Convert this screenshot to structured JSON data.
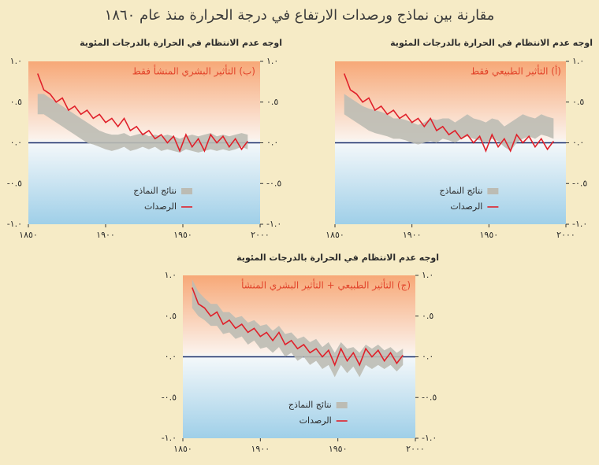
{
  "title": "مقارنة بين نماذج ورصدات الارتفاع في درجة الحرارة منذ عام ١٨٦٠",
  "chart_data": [
    {
      "type": "line",
      "title": "اوجه عدم الانتظام في الحرارة بالدرجات المئوية",
      "annotation": "(أ) التأثير الطبيعي فقط",
      "x": [
        1856,
        1860,
        1864,
        1868,
        1872,
        1876,
        1880,
        1884,
        1888,
        1892,
        1896,
        1900,
        1904,
        1908,
        1912,
        1916,
        1920,
        1924,
        1928,
        1932,
        1936,
        1940,
        1944,
        1948,
        1952,
        1956,
        1960,
        1964,
        1968,
        1972,
        1976,
        1980,
        1984,
        1988,
        1992
      ],
      "series": [
        {
          "name": "نتائج النماذج",
          "color": "#bcbcb4",
          "lower": [
            0.35,
            0.3,
            0.25,
            0.2,
            0.15,
            0.12,
            0.1,
            0.08,
            0.05,
            0.05,
            0.03,
            0.0,
            -0.02,
            0.0,
            0.02,
            0.0,
            0.05,
            0.03,
            0.0,
            0.05,
            0.08,
            0.05,
            0.03,
            0.0,
            0.05,
            0.02,
            -0.05,
            -0.1,
            0.0,
            0.05,
            0.08,
            0.05,
            0.1,
            0.08,
            0.05
          ],
          "upper": [
            0.6,
            0.55,
            0.5,
            0.45,
            0.42,
            0.4,
            0.38,
            0.35,
            0.3,
            0.3,
            0.28,
            0.25,
            0.22,
            0.25,
            0.3,
            0.28,
            0.3,
            0.3,
            0.25,
            0.3,
            0.35,
            0.3,
            0.28,
            0.25,
            0.3,
            0.28,
            0.2,
            0.25,
            0.3,
            0.35,
            0.32,
            0.3,
            0.35,
            0.32,
            0.3
          ]
        },
        {
          "name": "الرصدات",
          "color": "#e0202a",
          "values": [
            0.85,
            0.65,
            0.6,
            0.5,
            0.55,
            0.4,
            0.45,
            0.35,
            0.4,
            0.3,
            0.35,
            0.25,
            0.3,
            0.2,
            0.3,
            0.15,
            0.2,
            0.1,
            0.15,
            0.05,
            0.1,
            0.0,
            0.08,
            -0.1,
            0.1,
            -0.05,
            0.05,
            -0.1,
            0.1,
            0.0,
            0.08,
            -0.05,
            0.05,
            -0.08,
            0.02
          ]
        }
      ],
      "xlim": [
        1850,
        2000
      ],
      "ylim": [
        -1,
        1
      ],
      "xticks": [
        {
          "value": 1850,
          "label": "١٨٥٠"
        },
        {
          "value": 1900,
          "label": "١٩٠٠"
        },
        {
          "value": 1950,
          "label": "١٩٥٠"
        },
        {
          "value": 2000,
          "label": "٢٠٠٠"
        }
      ],
      "yticks": [
        {
          "value": 1,
          "label": "١.٠"
        },
        {
          "value": 0.5,
          "label": "٠.٥"
        },
        {
          "value": 0,
          "label": "٠.٠"
        },
        {
          "value": -0.5,
          "label": "-٠.٥"
        },
        {
          "value": -1,
          "label": "-١.٠"
        }
      ]
    },
    {
      "type": "line",
      "title": "اوجه عدم الانتظام في الحرارة بالدرجات المئوية",
      "annotation": "(ب) التأثير البشري المنشأ فقط",
      "x": [
        1856,
        1860,
        1864,
        1868,
        1872,
        1876,
        1880,
        1884,
        1888,
        1892,
        1896,
        1900,
        1904,
        1908,
        1912,
        1916,
        1920,
        1924,
        1928,
        1932,
        1936,
        1940,
        1944,
        1948,
        1952,
        1956,
        1960,
        1964,
        1968,
        1972,
        1976,
        1980,
        1984,
        1988,
        1992
      ],
      "series": [
        {
          "name": "نتائج النماذج",
          "color": "#bcbcb4",
          "lower": [
            0.35,
            0.35,
            0.3,
            0.25,
            0.2,
            0.15,
            0.1,
            0.05,
            0.0,
            -0.02,
            -0.05,
            -0.08,
            -0.1,
            -0.08,
            -0.05,
            -0.1,
            -0.08,
            -0.05,
            -0.08,
            -0.05,
            -0.1,
            -0.08,
            -0.1,
            -0.12,
            -0.08,
            -0.1,
            -0.12,
            -0.1,
            -0.08,
            -0.1,
            -0.08,
            -0.1,
            -0.08,
            -0.05,
            -0.08
          ],
          "upper": [
            0.6,
            0.6,
            0.55,
            0.5,
            0.45,
            0.4,
            0.35,
            0.3,
            0.25,
            0.2,
            0.15,
            0.12,
            0.1,
            0.1,
            0.12,
            0.08,
            0.1,
            0.12,
            0.08,
            0.1,
            0.08,
            0.1,
            0.08,
            0.05,
            0.08,
            0.1,
            0.08,
            0.1,
            0.12,
            0.08,
            0.1,
            0.08,
            0.1,
            0.12,
            0.1
          ]
        },
        {
          "name": "الرصدات",
          "color": "#e0202a",
          "values": [
            0.85,
            0.65,
            0.6,
            0.5,
            0.55,
            0.4,
            0.45,
            0.35,
            0.4,
            0.3,
            0.35,
            0.25,
            0.3,
            0.2,
            0.3,
            0.15,
            0.2,
            0.1,
            0.15,
            0.05,
            0.1,
            0.0,
            0.08,
            -0.1,
            0.1,
            -0.05,
            0.05,
            -0.1,
            0.1,
            0.0,
            0.08,
            -0.05,
            0.05,
            -0.08,
            0.02
          ]
        }
      ],
      "xlim": [
        1850,
        2000
      ],
      "ylim": [
        -1,
        1
      ],
      "xticks": [
        {
          "value": 1850,
          "label": "١٨٥٠"
        },
        {
          "value": 1900,
          "label": "١٩٠٠"
        },
        {
          "value": 1950,
          "label": "١٩٥٠"
        },
        {
          "value": 2000,
          "label": "٢٠٠٠"
        }
      ],
      "yticks": [
        {
          "value": 1,
          "label": "١.٠"
        },
        {
          "value": 0.5,
          "label": "٠.٥"
        },
        {
          "value": 0,
          "label": "٠.٠"
        },
        {
          "value": -0.5,
          "label": "-٠.٥"
        },
        {
          "value": -1,
          "label": "-١.٠"
        }
      ]
    },
    {
      "type": "line",
      "title": "اوجه عدم الانتظام في الحرارة بالدرجات المئوية",
      "annotation": "(ج) التأثير الطبيعي + التأثير البشري المنشأ",
      "x": [
        1856,
        1860,
        1864,
        1868,
        1872,
        1876,
        1880,
        1884,
        1888,
        1892,
        1896,
        1900,
        1904,
        1908,
        1912,
        1916,
        1920,
        1924,
        1928,
        1932,
        1936,
        1940,
        1944,
        1948,
        1952,
        1956,
        1960,
        1964,
        1968,
        1972,
        1976,
        1980,
        1984,
        1988,
        1992
      ],
      "series": [
        {
          "name": "نتائج النماذج",
          "color": "#bcbcb4",
          "lower": [
            0.6,
            0.5,
            0.45,
            0.38,
            0.38,
            0.28,
            0.3,
            0.22,
            0.25,
            0.15,
            0.2,
            0.1,
            0.12,
            0.05,
            0.12,
            0.0,
            0.05,
            -0.05,
            0.0,
            -0.1,
            -0.05,
            -0.15,
            -0.1,
            -0.25,
            -0.1,
            -0.2,
            -0.12,
            -0.25,
            -0.1,
            -0.15,
            -0.1,
            -0.15,
            -0.1,
            -0.18,
            -0.1
          ],
          "upper": [
            0.95,
            0.8,
            0.72,
            0.65,
            0.65,
            0.55,
            0.55,
            0.48,
            0.5,
            0.42,
            0.45,
            0.38,
            0.4,
            0.32,
            0.38,
            0.28,
            0.3,
            0.22,
            0.25,
            0.18,
            0.22,
            0.12,
            0.18,
            0.05,
            0.18,
            0.1,
            0.12,
            0.05,
            0.15,
            0.1,
            0.15,
            0.08,
            0.12,
            0.05,
            0.1
          ]
        },
        {
          "name": "الرصدات",
          "color": "#e0202a",
          "values": [
            0.85,
            0.65,
            0.6,
            0.5,
            0.55,
            0.4,
            0.45,
            0.35,
            0.4,
            0.3,
            0.35,
            0.25,
            0.3,
            0.2,
            0.3,
            0.15,
            0.2,
            0.1,
            0.15,
            0.05,
            0.1,
            0.0,
            0.08,
            -0.1,
            0.1,
            -0.05,
            0.05,
            -0.1,
            0.1,
            0.0,
            0.08,
            -0.05,
            0.05,
            -0.08,
            0.02
          ]
        }
      ],
      "xlim": [
        1850,
        2000
      ],
      "ylim": [
        -1,
        1
      ],
      "xticks": [
        {
          "value": 1850,
          "label": "١٨٥٠"
        },
        {
          "value": 1900,
          "label": "١٩٠٠"
        },
        {
          "value": 1950,
          "label": "١٩٥٠"
        },
        {
          "value": 2000,
          "label": "٢٠٠٠"
        }
      ],
      "yticks": [
        {
          "value": 1,
          "label": "١.٠"
        },
        {
          "value": 0.5,
          "label": "٠.٥"
        },
        {
          "value": 0,
          "label": "٠.٠"
        },
        {
          "value": -0.5,
          "label": "-٠.٥"
        },
        {
          "value": -1,
          "label": "-١.٠"
        }
      ]
    }
  ]
}
